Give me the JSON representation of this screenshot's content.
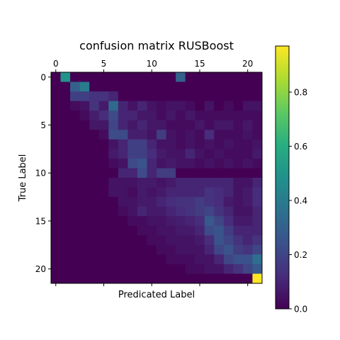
{
  "chart_data": {
    "type": "heatmap",
    "title": "confusion matrix RUSBoost",
    "xlabel": "Predicated Label",
    "ylabel": "True Label",
    "x_ticks": [
      "0",
      "5",
      "10",
      "15",
      "20"
    ],
    "y_ticks": [
      "0",
      "5",
      "10",
      "15",
      "20"
    ],
    "x_tick_position": "top",
    "n_rows": 22,
    "n_cols": 22,
    "grid": false,
    "colormap": "viridis",
    "colorbar": {
      "range": [
        0.0,
        0.97
      ],
      "ticks": [
        "0.0",
        "0.2",
        "0.4",
        "0.6",
        "0.8"
      ]
    },
    "matrix": [
      [
        0.0,
        0.5,
        0.0,
        0.0,
        0.0,
        0.0,
        0.0,
        0.0,
        0.0,
        0.0,
        0.0,
        0.0,
        0.0,
        0.3,
        0.0,
        0.0,
        0.0,
        0.0,
        0.0,
        0.0,
        0.0,
        0.0
      ],
      [
        0.0,
        0.0,
        0.3,
        0.4,
        0.0,
        0.0,
        0.0,
        0.0,
        0.0,
        0.0,
        0.0,
        0.0,
        0.0,
        0.0,
        0.0,
        0.0,
        0.0,
        0.0,
        0.0,
        0.0,
        0.0,
        0.0
      ],
      [
        0.0,
        0.0,
        0.18,
        0.18,
        0.14,
        0.14,
        0.1,
        0.0,
        0.0,
        0.0,
        0.0,
        0.0,
        0.0,
        0.0,
        0.0,
        0.0,
        0.0,
        0.0,
        0.0,
        0.0,
        0.0,
        0.0
      ],
      [
        0.0,
        0.0,
        0.03,
        0.05,
        0.14,
        0.07,
        0.33,
        0.1,
        0.05,
        0.1,
        0.05,
        0.03,
        0.05,
        0.05,
        0.03,
        0.0,
        0.05,
        0.0,
        0.03,
        0.0,
        0.05,
        0.05
      ],
      [
        0.0,
        0.0,
        0.0,
        0.03,
        0.08,
        0.12,
        0.22,
        0.1,
        0.1,
        0.06,
        0.06,
        0.03,
        0.06,
        0.03,
        0.06,
        0.03,
        0.03,
        0.03,
        0.03,
        0.03,
        0.03,
        0.03
      ],
      [
        0.0,
        0.0,
        0.0,
        0.0,
        0.06,
        0.06,
        0.2,
        0.1,
        0.06,
        0.1,
        0.06,
        0.06,
        0.03,
        0.03,
        0.03,
        0.06,
        0.03,
        0.06,
        0.06,
        0.03,
        0.06,
        0.03
      ],
      [
        0.0,
        0.0,
        0.0,
        0.0,
        0.0,
        0.03,
        0.22,
        0.22,
        0.08,
        0.08,
        0.05,
        0.17,
        0.05,
        0.03,
        0.05,
        0.03,
        0.12,
        0.03,
        0.03,
        0.03,
        0.05,
        0.03
      ],
      [
        0.0,
        0.0,
        0.0,
        0.0,
        0.0,
        0.0,
        0.05,
        0.1,
        0.18,
        0.18,
        0.1,
        0.05,
        0.05,
        0.03,
        0.05,
        0.03,
        0.05,
        0.03,
        0.05,
        0.03,
        0.03,
        0.05
      ],
      [
        0.0,
        0.0,
        0.0,
        0.0,
        0.0,
        0.0,
        0.07,
        0.1,
        0.18,
        0.18,
        0.12,
        0.07,
        0.05,
        0.05,
        0.1,
        0.05,
        0.03,
        0.05,
        0.03,
        0.03,
        0.03,
        0.07
      ],
      [
        0.0,
        0.0,
        0.0,
        0.0,
        0.0,
        0.0,
        0.03,
        0.05,
        0.22,
        0.25,
        0.1,
        0.05,
        0.07,
        0.05,
        0.05,
        0.03,
        0.05,
        0.03,
        0.05,
        0.03,
        0.05,
        0.03
      ],
      [
        0.0,
        0.0,
        0.0,
        0.0,
        0.0,
        0.0,
        0.0,
        0.1,
        0.1,
        0.22,
        0.1,
        0.17,
        0.17,
        0.0,
        0.0,
        0.0,
        0.0,
        0.0,
        0.0,
        0.0,
        0.0,
        0.0
      ],
      [
        0.0,
        0.0,
        0.0,
        0.0,
        0.0,
        0.0,
        0.05,
        0.05,
        0.05,
        0.07,
        0.07,
        0.05,
        0.07,
        0.1,
        0.1,
        0.1,
        0.1,
        0.1,
        0.1,
        0.05,
        0.05,
        0.1
      ],
      [
        0.0,
        0.0,
        0.0,
        0.0,
        0.0,
        0.0,
        0.05,
        0.05,
        0.03,
        0.07,
        0.05,
        0.07,
        0.1,
        0.1,
        0.1,
        0.1,
        0.14,
        0.12,
        0.1,
        0.05,
        0.07,
        0.12
      ],
      [
        0.0,
        0.0,
        0.0,
        0.0,
        0.0,
        0.0,
        0.0,
        0.05,
        0.05,
        0.07,
        0.07,
        0.1,
        0.12,
        0.14,
        0.14,
        0.17,
        0.14,
        0.12,
        0.07,
        0.05,
        0.07,
        0.12
      ],
      [
        0.0,
        0.0,
        0.0,
        0.0,
        0.0,
        0.0,
        0.0,
        0.03,
        0.05,
        0.1,
        0.07,
        0.07,
        0.1,
        0.12,
        0.14,
        0.17,
        0.2,
        0.14,
        0.1,
        0.05,
        0.05,
        0.1
      ],
      [
        0.0,
        0.0,
        0.0,
        0.0,
        0.0,
        0.0,
        0.0,
        0.0,
        0.03,
        0.03,
        0.05,
        0.05,
        0.07,
        0.08,
        0.1,
        0.12,
        0.27,
        0.2,
        0.12,
        0.07,
        0.07,
        0.1
      ],
      [
        0.0,
        0.0,
        0.0,
        0.0,
        0.0,
        0.0,
        0.0,
        0.0,
        0.0,
        0.03,
        0.03,
        0.05,
        0.05,
        0.07,
        0.07,
        0.1,
        0.22,
        0.25,
        0.17,
        0.1,
        0.1,
        0.1
      ],
      [
        0.0,
        0.0,
        0.0,
        0.0,
        0.0,
        0.0,
        0.0,
        0.0,
        0.0,
        0.0,
        0.03,
        0.03,
        0.05,
        0.05,
        0.05,
        0.07,
        0.12,
        0.25,
        0.2,
        0.14,
        0.1,
        0.14
      ],
      [
        0.0,
        0.0,
        0.0,
        0.0,
        0.0,
        0.0,
        0.0,
        0.0,
        0.0,
        0.0,
        0.0,
        0.03,
        0.03,
        0.05,
        0.05,
        0.05,
        0.1,
        0.2,
        0.25,
        0.17,
        0.14,
        0.2
      ],
      [
        0.0,
        0.0,
        0.0,
        0.0,
        0.0,
        0.0,
        0.0,
        0.0,
        0.0,
        0.0,
        0.0,
        0.0,
        0.03,
        0.03,
        0.03,
        0.05,
        0.05,
        0.1,
        0.2,
        0.24,
        0.24,
        0.35
      ],
      [
        0.0,
        0.0,
        0.0,
        0.0,
        0.0,
        0.0,
        0.0,
        0.0,
        0.0,
        0.0,
        0.0,
        0.0,
        0.0,
        0.0,
        0.03,
        0.03,
        0.05,
        0.05,
        0.1,
        0.14,
        0.2,
        0.27
      ],
      [
        0.0,
        0.0,
        0.0,
        0.0,
        0.0,
        0.0,
        0.0,
        0.0,
        0.0,
        0.0,
        0.0,
        0.0,
        0.0,
        0.0,
        0.0,
        0.0,
        0.0,
        0.0,
        0.0,
        0.0,
        0.0,
        0.97
      ]
    ]
  }
}
